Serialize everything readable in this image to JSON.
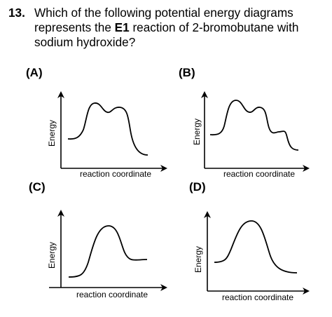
{
  "question": {
    "number": "13.",
    "line1": "Which of the following potential energy diagrams",
    "line2_pre": "represents the ",
    "line2_bold": "E1",
    "line2_post": " reaction of 2-bromobutane with",
    "line3": "sodium hydroxide?"
  },
  "options": [
    {
      "label": "(A)",
      "y_axis": "Energy",
      "x_axis": "reaction coordinate",
      "profile": "two-humps"
    },
    {
      "label": "(B)",
      "y_axis": "Energy",
      "x_axis": "reaction coordinate",
      "profile": "three-humps"
    },
    {
      "label": "(C)",
      "y_axis": "Energy",
      "x_axis": "reaction coordinate",
      "profile": "single-hump"
    },
    {
      "label": "(D)",
      "y_axis": "Energy",
      "x_axis": "reaction coordinate",
      "profile": "single-hump-exothermic"
    }
  ],
  "colors": {
    "ink": "#000000",
    "background": "#ffffff"
  }
}
